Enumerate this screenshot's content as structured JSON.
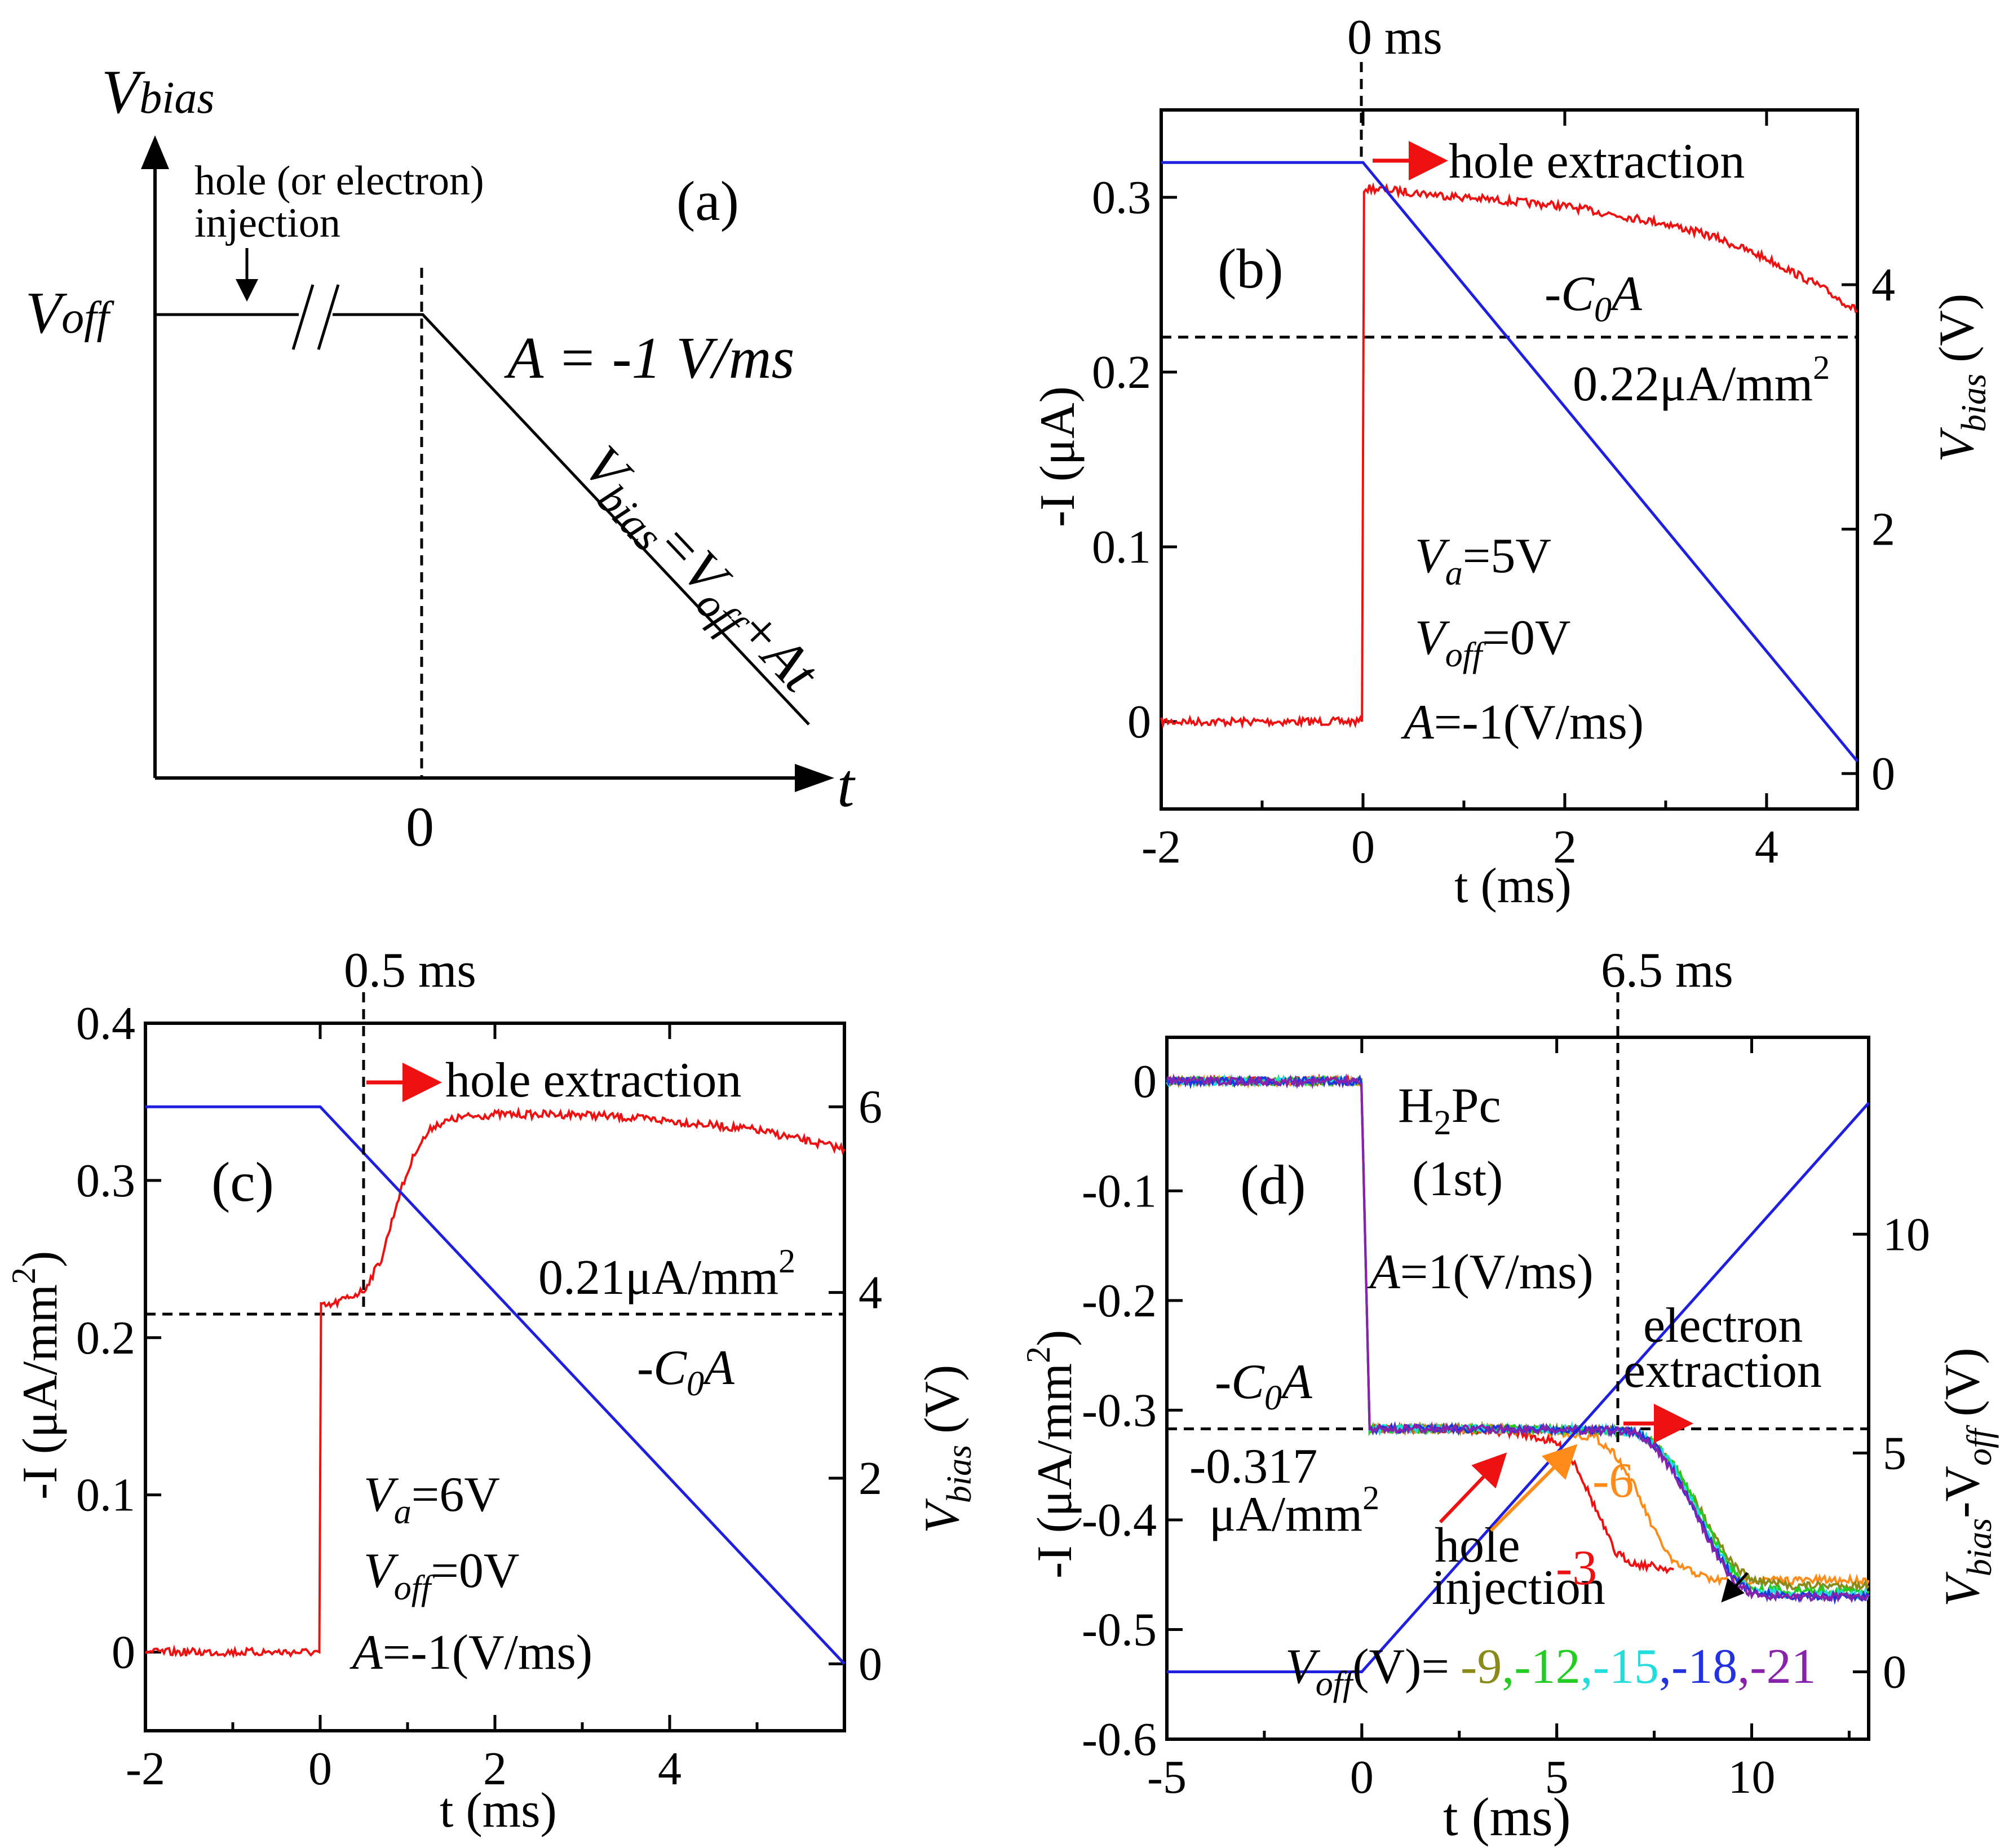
{
  "panel_a": {
    "tag": "(a)",
    "y_axis_label": "V",
    "y_axis_label_sub": "bias",
    "x_axis_label": "t",
    "x_zero": "0",
    "v_off_label": "V",
    "v_off_sub": "off",
    "injection_note_1": "hole (or electron)",
    "injection_note_2": "injection",
    "rate": "A = -1 V/ms",
    "ramp_eq_1": "V",
    "ramp_eq_2": "bias",
    "ramp_eq_3": "=V",
    "ramp_eq_4": "off",
    "ramp_eq_5": "+At"
  },
  "panel_b": {
    "tag": "(b)",
    "top_marker": "0 ms",
    "arrow_note": "hole extraction",
    "c0a": "-C",
    "c0a_sub": "0",
    "c0a_end": "A",
    "level_label": "0.22μA/mm",
    "level_sup": "2",
    "params": [
      "=5V",
      "=0V",
      "=-1(V/ms)"
    ],
    "param_names": [
      "V",
      "V",
      "A"
    ],
    "param_subs": [
      "a",
      "off",
      ""
    ],
    "y_left_label": "-I (μA)",
    "y_right_label": "V",
    "y_right_sub": "bias",
    "y_right_unit": "(V)",
    "x_label": "t (ms)"
  },
  "panel_c": {
    "tag": "(c)",
    "top_marker": "0.5  ms",
    "arrow_note": "hole extraction",
    "c0a": "-C",
    "c0a_sub": "0",
    "c0a_end": "A",
    "level_label": "0.21μA/mm",
    "level_sup": "2",
    "params": [
      "=6V",
      "=0V",
      "=-1(V/ms)"
    ],
    "param_names": [
      "V",
      "V",
      "A"
    ],
    "param_subs": [
      "a",
      "off",
      ""
    ],
    "y_left_label": "-I (μA/mm",
    "y_left_sup": "2",
    "y_left_end": ")",
    "y_right_label": "V",
    "y_right_sub": "bias",
    "y_right_unit": "(V)",
    "x_label": "t (ms)"
  },
  "panel_d": {
    "tag": "(d)",
    "top_marker": "6.5  ms",
    "material_1": "H",
    "material_sub": "2",
    "material_2": "Pc",
    "material_run": "(1st)",
    "rate_name": "A",
    "rate": "=1(V/ms)",
    "c0a": "-C",
    "c0a_sub": "0",
    "c0a_end": "A",
    "level_1": "-0.317",
    "level_2": "μA/mm",
    "level_sup": "2",
    "extraction_1": "electron",
    "extraction_2": "extraction",
    "injection_1": "hole",
    "injection_2": "injection",
    "curve_label_m3": "-3",
    "curve_label_m6": "-6",
    "legend_prefix": "V",
    "legend_sub": "off",
    "legend_unit": "(V)=",
    "legend_values": [
      "-9",
      ",-12",
      ",-15",
      ",-18",
      ",-21"
    ],
    "y_left_label": "-I (μA/mm",
    "y_left_sup": "2",
    "y_left_end": ")",
    "y_right_label": "V",
    "y_right_sub": "bias",
    "y_right_mid": "-V",
    "y_right_sub2": "off",
    "y_right_unit": " (V)",
    "x_label": "t (ms)"
  },
  "colors": {
    "red": "#ee1111",
    "blue": "#1f1fe0",
    "orange": "#ff8c1a",
    "olive": "#8a8a1a",
    "green": "#22cc22",
    "cyan": "#22dddd",
    "darkblue": "#2233dd",
    "purple": "#8822aa"
  },
  "chart_data": [
    {
      "panel": "b",
      "type": "line",
      "x_range": [
        -2,
        4.9
      ],
      "x_ticks": [
        -2,
        0,
        2,
        4
      ],
      "y_left_range": [
        -0.05,
        0.35
      ],
      "y_left_ticks": [
        0.0,
        0.1,
        0.2,
        0.3
      ],
      "y_right_range": [
        -0.29,
        5.43
      ],
      "y_right_ticks": [
        0,
        2,
        4
      ],
      "series": [
        {
          "name": "-I",
          "axis": "left",
          "color": "red",
          "x": [
            -2,
            -0.01,
            0.01,
            0.1,
            1,
            2,
            3,
            3.5,
            4,
            4.5,
            4.9
          ],
          "y": [
            0.0,
            0.0,
            0.305,
            0.305,
            0.3,
            0.295,
            0.285,
            0.277,
            0.265,
            0.25,
            0.235
          ]
        },
        {
          "name": "V_bias",
          "axis": "right",
          "color": "blue",
          "x": [
            -2,
            0,
            4.9
          ],
          "y": [
            5.0,
            5.0,
            0.1
          ]
        }
      ],
      "reference_lines": [
        {
          "axis": "left",
          "y": 0.22
        },
        {
          "axis": "x",
          "x": 0
        }
      ]
    },
    {
      "panel": "c",
      "type": "line",
      "x_range": [
        -2,
        6
      ],
      "x_ticks": [
        -2,
        0,
        2,
        4
      ],
      "y_left_range": [
        -0.05,
        0.4
      ],
      "y_left_ticks": [
        0.0,
        0.1,
        0.2,
        0.3,
        0.4
      ],
      "y_right_range": [
        -0.72,
        6.9
      ],
      "y_right_ticks": [
        0,
        2,
        4,
        6
      ],
      "series": [
        {
          "name": "-I",
          "axis": "left",
          "color": "red",
          "x": [
            -2,
            -0.01,
            0.01,
            0.1,
            0.5,
            0.7,
            0.9,
            1.1,
            1.3,
            1.6,
            2,
            3,
            4,
            5,
            6
          ],
          "y": [
            0.0,
            0.0,
            0.22,
            0.22,
            0.23,
            0.25,
            0.29,
            0.32,
            0.335,
            0.34,
            0.342,
            0.342,
            0.338,
            0.332,
            0.32
          ]
        },
        {
          "name": "V_bias",
          "axis": "right",
          "color": "blue",
          "x": [
            -2,
            0,
            6
          ],
          "y": [
            6.0,
            6.0,
            0.0
          ]
        }
      ],
      "reference_lines": [
        {
          "axis": "left",
          "y": 0.215
        },
        {
          "axis": "x",
          "x": 0.5
        }
      ]
    },
    {
      "panel": "d",
      "type": "line",
      "x_range": [
        -5,
        13
      ],
      "x_ticks": [
        -5,
        0,
        5,
        10
      ],
      "y_left_range": [
        -0.6,
        0.04
      ],
      "y_left_ticks": [
        0.0,
        -0.1,
        -0.2,
        -0.3,
        -0.4,
        -0.5,
        -0.6
      ],
      "y_right_range": [
        -1.54,
        14.5
      ],
      "y_right_ticks": [
        0,
        5,
        10
      ],
      "series": [
        {
          "name": "-3",
          "axis": "left",
          "color": "red",
          "x": [
            -5,
            -0.01,
            0.2,
            2,
            4,
            5,
            5.5,
            6,
            6.5,
            7,
            8
          ],
          "y": [
            0.0,
            0.0,
            -0.317,
            -0.317,
            -0.32,
            -0.33,
            -0.35,
            -0.39,
            -0.43,
            -0.44,
            -0.445
          ]
        },
        {
          "name": "-6",
          "axis": "left",
          "color": "orange",
          "x": [
            -5,
            -0.01,
            0.2,
            3,
            5,
            6,
            6.5,
            7,
            7.5,
            8,
            9,
            10,
            11,
            13
          ],
          "y": [
            0.0,
            0.0,
            -0.317,
            -0.317,
            -0.32,
            -0.325,
            -0.34,
            -0.37,
            -0.41,
            -0.44,
            -0.455,
            -0.455,
            -0.455,
            -0.455
          ]
        },
        {
          "name": "-9",
          "axis": "left",
          "color": "olive",
          "x": [
            -5,
            -0.01,
            0.2,
            3,
            6,
            7,
            7.5,
            8,
            8.5,
            9,
            9.5,
            10,
            11,
            13
          ],
          "y": [
            0.0,
            0.0,
            -0.317,
            -0.317,
            -0.318,
            -0.32,
            -0.33,
            -0.35,
            -0.38,
            -0.41,
            -0.44,
            -0.455,
            -0.46,
            -0.46
          ]
        },
        {
          "name": "-12",
          "axis": "left",
          "color": "green",
          "x": [
            -5,
            -0.01,
            0.2,
            3,
            6,
            7,
            7.5,
            8,
            8.5,
            9,
            9.5,
            10,
            11,
            13
          ],
          "y": [
            0.0,
            0.0,
            -0.317,
            -0.317,
            -0.318,
            -0.32,
            -0.33,
            -0.35,
            -0.38,
            -0.415,
            -0.445,
            -0.462,
            -0.465,
            -0.465
          ]
        },
        {
          "name": "-15",
          "axis": "left",
          "color": "cyan",
          "x": [
            -5,
            -0.01,
            0.2,
            3,
            6,
            7,
            7.5,
            8,
            8.5,
            9,
            9.5,
            10,
            11,
            13
          ],
          "y": [
            0.0,
            0.0,
            -0.317,
            -0.317,
            -0.318,
            -0.32,
            -0.33,
            -0.352,
            -0.385,
            -0.42,
            -0.45,
            -0.465,
            -0.468,
            -0.468
          ]
        },
        {
          "name": "-18",
          "axis": "left",
          "color": "darkblue",
          "x": [
            -5,
            -0.01,
            0.2,
            3,
            6,
            7,
            7.5,
            8,
            8.5,
            9,
            9.5,
            10,
            11,
            13
          ],
          "y": [
            0.0,
            0.0,
            -0.317,
            -0.317,
            -0.318,
            -0.32,
            -0.332,
            -0.355,
            -0.388,
            -0.423,
            -0.452,
            -0.467,
            -0.47,
            -0.47
          ]
        },
        {
          "name": "-21",
          "axis": "left",
          "color": "purple",
          "x": [
            -5,
            -0.01,
            0.2,
            3,
            6,
            7,
            7.5,
            8,
            8.5,
            9,
            9.5,
            10,
            11,
            13
          ],
          "y": [
            0.0,
            0.0,
            -0.317,
            -0.317,
            -0.318,
            -0.32,
            -0.333,
            -0.357,
            -0.39,
            -0.425,
            -0.455,
            -0.468,
            -0.47,
            -0.47
          ]
        },
        {
          "name": "V_bias-V_off",
          "axis": "right",
          "color": "blue",
          "x": [
            -5,
            0,
            13
          ],
          "y": [
            0,
            0,
            13
          ]
        }
      ],
      "reference_lines": [
        {
          "axis": "left",
          "y": -0.317
        },
        {
          "axis": "x",
          "x": 6.5
        }
      ]
    }
  ]
}
